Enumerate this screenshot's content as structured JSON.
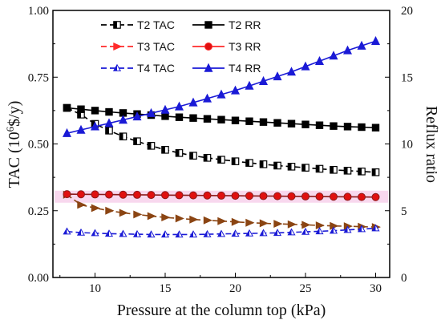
{
  "chart_data": {
    "type": "line",
    "xlabel": "Pressure at the column top (kPa)",
    "ylabel_left_prefix": "TAC (10",
    "ylabel_left_sup": "6",
    "ylabel_left_suffix": "$/y)",
    "ylabel_right": "Reflux ratio",
    "xlim": [
      7,
      31
    ],
    "ylim_left": [
      0.0,
      1.0
    ],
    "ylim_right": [
      0,
      20
    ],
    "x_ticks": [
      "10",
      "15",
      "20",
      "25",
      "30"
    ],
    "y_left_ticks": [
      "0.00",
      "0.25",
      "0.50",
      "0.75",
      "1.00"
    ],
    "y_right_ticks": [
      "0",
      "5",
      "10",
      "15",
      "20"
    ],
    "grid": false,
    "legend_position": "top-center",
    "highlight_band": {
      "axis": "left",
      "from": 0.28,
      "to": 0.325,
      "color": "#f7d4ec"
    },
    "x": [
      8,
      9,
      10,
      11,
      12,
      13,
      14,
      15,
      16,
      17,
      18,
      19,
      20,
      21,
      22,
      23,
      24,
      25,
      26,
      27,
      28,
      29,
      30
    ],
    "series": [
      {
        "name": "T2 TAC",
        "axis": "left",
        "color": "#000000",
        "marker": "half-square",
        "dashed": true,
        "values": [
          0.635,
          0.61,
          0.575,
          0.55,
          0.528,
          0.51,
          0.493,
          0.478,
          0.466,
          0.456,
          0.448,
          0.441,
          0.435,
          0.429,
          0.424,
          0.419,
          0.415,
          0.411,
          0.407,
          0.403,
          0.4,
          0.397,
          0.394
        ]
      },
      {
        "name": "T2 RR",
        "axis": "right",
        "color": "#000000",
        "marker": "square",
        "dashed": false,
        "values": [
          12.7,
          12.6,
          12.5,
          12.4,
          12.32,
          12.24,
          12.16,
          12.08,
          12.0,
          11.94,
          11.88,
          11.82,
          11.76,
          11.7,
          11.64,
          11.58,
          11.52,
          11.46,
          11.4,
          11.34,
          11.3,
          11.26,
          11.22
        ]
      },
      {
        "name": "T3 TAC",
        "axis": "left",
        "color": "#8b4513",
        "legend_color": "#ff2a2a",
        "marker": "triangle-right",
        "dashed": true,
        "values": [
          0.31,
          0.272,
          0.26,
          0.25,
          0.242,
          0.236,
          0.23,
          0.225,
          0.221,
          0.217,
          0.214,
          0.211,
          0.208,
          0.205,
          0.203,
          0.201,
          0.199,
          0.197,
          0.195,
          0.193,
          0.192,
          0.19,
          0.189
        ]
      },
      {
        "name": "T3 RR",
        "axis": "right",
        "color": "#8b1a1a",
        "legend_color": "#ff2a2a",
        "marker": "circle",
        "dashed": false,
        "values": [
          6.24,
          6.23,
          6.22,
          6.21,
          6.2,
          6.19,
          6.18,
          6.17,
          6.16,
          6.15,
          6.14,
          6.13,
          6.12,
          6.11,
          6.1,
          6.09,
          6.08,
          6.07,
          6.06,
          6.05,
          6.04,
          6.03,
          6.02
        ]
      },
      {
        "name": "T4 TAC",
        "axis": "left",
        "color": "#1a1ad6",
        "marker": "half-triangle",
        "dashed": true,
        "values": [
          0.172,
          0.168,
          0.166,
          0.164,
          0.163,
          0.162,
          0.161,
          0.161,
          0.161,
          0.161,
          0.162,
          0.163,
          0.164,
          0.165,
          0.166,
          0.167,
          0.169,
          0.171,
          0.173,
          0.175,
          0.178,
          0.181,
          0.184
        ]
      },
      {
        "name": "T4 RR",
        "axis": "right",
        "color": "#1a1ad6",
        "marker": "triangle",
        "dashed": false,
        "values": [
          10.8,
          11.05,
          11.3,
          11.55,
          11.8,
          12.05,
          12.3,
          12.55,
          12.8,
          13.1,
          13.4,
          13.7,
          14.0,
          14.35,
          14.7,
          15.05,
          15.4,
          15.8,
          16.2,
          16.6,
          17.0,
          17.35,
          17.7
        ]
      }
    ]
  }
}
